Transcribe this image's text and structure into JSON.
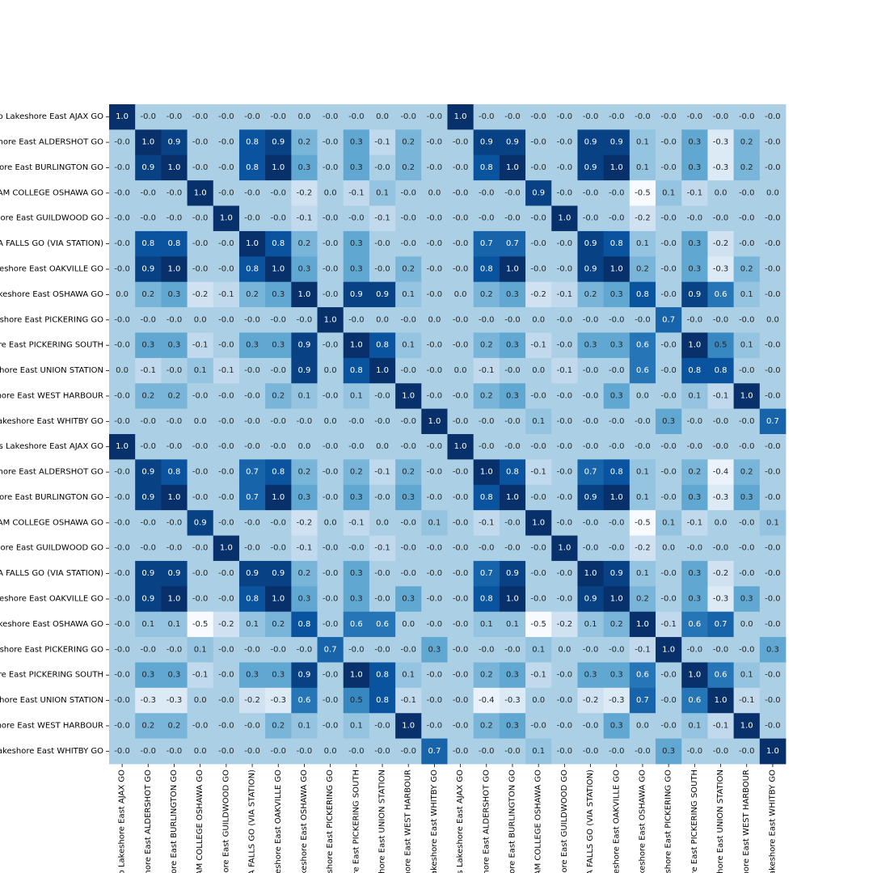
{
  "chart_data": {
    "type": "heatmap",
    "title": "",
    "xlabel": "",
    "ylabel": "",
    "colormap": "Blues",
    "vmin": -0.5,
    "vmax": 1.0,
    "colorbar": false,
    "grid": false,
    "x_labels": [
      "o Lakeshore East AJAX GO",
      "hore East ALDERSHOT GO",
      "ore East BURLINGTON GO",
      "AM COLLEGE OSHAWA GO",
      "ore East GUILDWOOD GO",
      "A FALLS GO (VIA STATION)",
      "eshore East OAKVILLE GO",
      "keshore East OSHAWA GO",
      "shore East PICKERING GO",
      "re East PICKERING SOUTH",
      "hore East UNION STATION",
      "hore East WEST HARBOUR",
      "akeshore East WHITBY GO",
      "s Lakeshore East AJAX GO",
      "hore East ALDERSHOT GO",
      "ore East BURLINGTON GO",
      "AM COLLEGE OSHAWA GO",
      "ore East GUILDWOOD GO",
      "A FALLS GO (VIA STATION)",
      "eshore East OAKVILLE GO",
      "keshore East OSHAWA GO",
      "shore East PICKERING GO",
      "re East PICKERING SOUTH",
      "hore East UNION STATION",
      "hore East WEST HARBOUR",
      "akeshore East WHITBY GO"
    ],
    "y_labels": [
      "o Lakeshore East AJAX GO",
      "hore East ALDERSHOT GO",
      "ore East BURLINGTON GO",
      "AM COLLEGE OSHAWA GO",
      "ore East GUILDWOOD GO",
      "A FALLS GO (VIA STATION)",
      "eshore East OAKVILLE GO",
      "keshore East OSHAWA GO",
      "shore East PICKERING GO",
      "re East PICKERING SOUTH",
      "hore East UNION STATION",
      "hore East WEST HARBOUR",
      "akeshore East WHITBY GO",
      "s Lakeshore East AJAX GO",
      "hore East ALDERSHOT GO",
      "ore East BURLINGTON GO",
      "AM COLLEGE OSHAWA GO",
      "ore East GUILDWOOD GO",
      "A FALLS GO (VIA STATION)",
      "eshore East OAKVILLE GO",
      "keshore East OSHAWA GO",
      "shore East PICKERING GO",
      "re East PICKERING SOUTH",
      "hore East UNION STATION",
      "hore East WEST HARBOUR",
      "akeshore East WHITBY GO"
    ],
    "values": [
      [
        "1.0",
        "-0.0",
        "-0.0",
        "-0.0",
        "-0.0",
        "-0.0",
        "-0.0",
        "0.0",
        "-0.0",
        "-0.0",
        "0.0",
        "-0.0",
        "-0.0",
        "1.0",
        "-0.0",
        "-0.0",
        "-0.0",
        "-0.0",
        "-0.0",
        "-0.0",
        "-0.0",
        "-0.0",
        "-0.0",
        "-0.0",
        "-0.0",
        "-0.0"
      ],
      [
        "-0.0",
        "1.0",
        "0.9",
        "-0.0",
        "-0.0",
        "0.8",
        "0.9",
        "0.2",
        "-0.0",
        "0.3",
        "-0.1",
        "0.2",
        "-0.0",
        "-0.0",
        "0.9",
        "0.9",
        "-0.0",
        "-0.0",
        "0.9",
        "0.9",
        "0.1",
        "-0.0",
        "0.3",
        "-0.3",
        "0.2",
        "-0.0"
      ],
      [
        "-0.0",
        "0.9",
        "1.0",
        "-0.0",
        "-0.0",
        "0.8",
        "1.0",
        "0.3",
        "-0.0",
        "0.3",
        "-0.0",
        "0.2",
        "-0.0",
        "-0.0",
        "0.8",
        "1.0",
        "-0.0",
        "-0.0",
        "0.9",
        "1.0",
        "0.1",
        "-0.0",
        "0.3",
        "-0.3",
        "0.2",
        "-0.0"
      ],
      [
        "-0.0",
        "-0.0",
        "-0.0",
        "1.0",
        "-0.0",
        "-0.0",
        "-0.0",
        "-0.2",
        "0.0",
        "-0.1",
        "0.1",
        "-0.0",
        "0.0",
        "-0.0",
        "-0.0",
        "-0.0",
        "0.9",
        "-0.0",
        "-0.0",
        "-0.0",
        "-0.5",
        "0.1",
        "-0.1",
        "0.0",
        "-0.0",
        "0.0"
      ],
      [
        "-0.0",
        "-0.0",
        "-0.0",
        "-0.0",
        "1.0",
        "-0.0",
        "-0.0",
        "-0.1",
        "-0.0",
        "-0.0",
        "-0.1",
        "-0.0",
        "-0.0",
        "-0.0",
        "-0.0",
        "-0.0",
        "-0.0",
        "1.0",
        "-0.0",
        "-0.0",
        "-0.2",
        "-0.0",
        "-0.0",
        "-0.0",
        "-0.0",
        "-0.0"
      ],
      [
        "-0.0",
        "0.8",
        "0.8",
        "-0.0",
        "-0.0",
        "1.0",
        "0.8",
        "0.2",
        "-0.0",
        "0.3",
        "-0.0",
        "-0.0",
        "-0.0",
        "-0.0",
        "0.7",
        "0.7",
        "-0.0",
        "-0.0",
        "0.9",
        "0.8",
        "0.1",
        "-0.0",
        "0.3",
        "-0.2",
        "-0.0",
        "-0.0"
      ],
      [
        "-0.0",
        "0.9",
        "1.0",
        "-0.0",
        "-0.0",
        "0.8",
        "1.0",
        "0.3",
        "-0.0",
        "0.3",
        "-0.0",
        "0.2",
        "-0.0",
        "-0.0",
        "0.8",
        "1.0",
        "-0.0",
        "-0.0",
        "0.9",
        "1.0",
        "0.2",
        "-0.0",
        "0.3",
        "-0.3",
        "0.2",
        "-0.0"
      ],
      [
        "0.0",
        "0.2",
        "0.3",
        "-0.2",
        "-0.1",
        "0.2",
        "0.3",
        "1.0",
        "-0.0",
        "0.9",
        "0.9",
        "0.1",
        "-0.0",
        "0.0",
        "0.2",
        "0.3",
        "-0.2",
        "-0.1",
        "0.2",
        "0.3",
        "0.8",
        "-0.0",
        "0.9",
        "0.6",
        "0.1",
        "-0.0"
      ],
      [
        "-0.0",
        "-0.0",
        "-0.0",
        "0.0",
        "-0.0",
        "-0.0",
        "-0.0",
        "-0.0",
        "1.0",
        "-0.0",
        "0.0",
        "-0.0",
        "0.0",
        "-0.0",
        "-0.0",
        "-0.0",
        "0.0",
        "-0.0",
        "-0.0",
        "-0.0",
        "-0.0",
        "0.7",
        "-0.0",
        "-0.0",
        "-0.0",
        "0.0"
      ],
      [
        "-0.0",
        "0.3",
        "0.3",
        "-0.1",
        "-0.0",
        "0.3",
        "0.3",
        "0.9",
        "-0.0",
        "1.0",
        "0.8",
        "0.1",
        "-0.0",
        "-0.0",
        "0.2",
        "0.3",
        "-0.1",
        "-0.0",
        "0.3",
        "0.3",
        "0.6",
        "-0.0",
        "1.0",
        "0.5",
        "0.1",
        "-0.0"
      ],
      [
        "0.0",
        "-0.1",
        "-0.0",
        "0.1",
        "-0.1",
        "-0.0",
        "-0.0",
        "0.9",
        "0.0",
        "0.8",
        "1.0",
        "-0.0",
        "-0.0",
        "0.0",
        "-0.1",
        "-0.0",
        "0.0",
        "-0.1",
        "-0.0",
        "-0.0",
        "0.6",
        "-0.0",
        "0.8",
        "0.8",
        "-0.0",
        "-0.0"
      ],
      [
        "-0.0",
        "0.2",
        "0.2",
        "-0.0",
        "-0.0",
        "-0.0",
        "0.2",
        "0.1",
        "-0.0",
        "0.1",
        "-0.0",
        "1.0",
        "-0.0",
        "-0.0",
        "0.2",
        "0.3",
        "-0.0",
        "-0.0",
        "-0.0",
        "0.3",
        "0.0",
        "-0.0",
        "0.1",
        "-0.1",
        "1.0",
        "-0.0"
      ],
      [
        "-0.0",
        "-0.0",
        "-0.0",
        "0.0",
        "-0.0",
        "-0.0",
        "-0.0",
        "-0.0",
        "0.0",
        "-0.0",
        "-0.0",
        "-0.0",
        "1.0",
        "-0.0",
        "-0.0",
        "-0.0",
        "0.1",
        "-0.0",
        "-0.0",
        "-0.0",
        "-0.0",
        "0.3",
        "-0.0",
        "-0.0",
        "-0.0",
        "0.7"
      ],
      [
        "1.0",
        "-0.0",
        "-0.0",
        "-0.0",
        "-0.0",
        "-0.0",
        "-0.0",
        "0.0",
        "-0.0",
        "-0.0",
        "0.0",
        "-0.0",
        "-0.0",
        "1.0",
        "-0.0",
        "-0.0",
        "-0.0",
        "-0.0",
        "-0.0",
        "-0.0",
        "-0.0",
        "-0.0",
        "-0.0",
        "-0.0",
        "-0.0",
        "-0.0"
      ],
      [
        "-0.0",
        "0.9",
        "0.8",
        "-0.0",
        "-0.0",
        "0.7",
        "0.8",
        "0.2",
        "-0.0",
        "0.2",
        "-0.1",
        "0.2",
        "-0.0",
        "-0.0",
        "1.0",
        "0.8",
        "-0.1",
        "-0.0",
        "0.7",
        "0.8",
        "0.1",
        "-0.0",
        "0.2",
        "-0.4",
        "0.2",
        "-0.0"
      ],
      [
        "-0.0",
        "0.9",
        "1.0",
        "-0.0",
        "-0.0",
        "0.7",
        "1.0",
        "0.3",
        "-0.0",
        "0.3",
        "-0.0",
        "0.3",
        "-0.0",
        "-0.0",
        "0.8",
        "1.0",
        "-0.0",
        "-0.0",
        "0.9",
        "1.0",
        "0.1",
        "-0.0",
        "0.3",
        "-0.3",
        "0.3",
        "-0.0"
      ],
      [
        "-0.0",
        "-0.0",
        "-0.0",
        "0.9",
        "-0.0",
        "-0.0",
        "-0.0",
        "-0.2",
        "0.0",
        "-0.1",
        "0.0",
        "-0.0",
        "0.1",
        "-0.0",
        "-0.1",
        "-0.0",
        "1.0",
        "-0.0",
        "-0.0",
        "-0.0",
        "-0.5",
        "0.1",
        "-0.1",
        "0.0",
        "-0.0",
        "0.1"
      ],
      [
        "-0.0",
        "-0.0",
        "-0.0",
        "-0.0",
        "1.0",
        "-0.0",
        "-0.0",
        "-0.1",
        "-0.0",
        "-0.0",
        "-0.1",
        "-0.0",
        "-0.0",
        "-0.0",
        "-0.0",
        "-0.0",
        "-0.0",
        "1.0",
        "-0.0",
        "-0.0",
        "-0.2",
        "0.0",
        "-0.0",
        "-0.0",
        "-0.0",
        "-0.0"
      ],
      [
        "-0.0",
        "0.9",
        "0.9",
        "-0.0",
        "-0.0",
        "0.9",
        "0.9",
        "0.2",
        "-0.0",
        "0.3",
        "-0.0",
        "-0.0",
        "-0.0",
        "-0.0",
        "0.7",
        "0.9",
        "-0.0",
        "-0.0",
        "1.0",
        "0.9",
        "0.1",
        "-0.0",
        "0.3",
        "-0.2",
        "-0.0",
        "-0.0"
      ],
      [
        "-0.0",
        "0.9",
        "1.0",
        "-0.0",
        "-0.0",
        "0.8",
        "1.0",
        "0.3",
        "-0.0",
        "0.3",
        "-0.0",
        "0.3",
        "-0.0",
        "-0.0",
        "0.8",
        "1.0",
        "-0.0",
        "-0.0",
        "0.9",
        "1.0",
        "0.2",
        "-0.0",
        "0.3",
        "-0.3",
        "0.3",
        "-0.0"
      ],
      [
        "-0.0",
        "0.1",
        "0.1",
        "-0.5",
        "-0.2",
        "0.1",
        "0.2",
        "0.8",
        "-0.0",
        "0.6",
        "0.6",
        "0.0",
        "-0.0",
        "-0.0",
        "0.1",
        "0.1",
        "-0.5",
        "-0.2",
        "0.1",
        "0.2",
        "1.0",
        "-0.1",
        "0.6",
        "0.7",
        "0.0",
        "-0.0"
      ],
      [
        "-0.0",
        "-0.0",
        "-0.0",
        "0.1",
        "-0.0",
        "-0.0",
        "-0.0",
        "-0.0",
        "0.7",
        "-0.0",
        "-0.0",
        "-0.0",
        "0.3",
        "-0.0",
        "-0.0",
        "-0.0",
        "0.1",
        "0.0",
        "-0.0",
        "-0.0",
        "-0.1",
        "1.0",
        "-0.0",
        "-0.0",
        "-0.0",
        "0.3"
      ],
      [
        "-0.0",
        "0.3",
        "0.3",
        "-0.1",
        "-0.0",
        "0.3",
        "0.3",
        "0.9",
        "-0.0",
        "1.0",
        "0.8",
        "0.1",
        "-0.0",
        "-0.0",
        "0.2",
        "0.3",
        "-0.1",
        "-0.0",
        "0.3",
        "0.3",
        "0.6",
        "-0.0",
        "1.0",
        "0.6",
        "0.1",
        "-0.0"
      ],
      [
        "-0.0",
        "-0.3",
        "-0.3",
        "0.0",
        "-0.0",
        "-0.2",
        "-0.3",
        "0.6",
        "-0.0",
        "0.5",
        "0.8",
        "-0.1",
        "-0.0",
        "-0.0",
        "-0.4",
        "-0.3",
        "0.0",
        "-0.0",
        "-0.2",
        "-0.3",
        "0.7",
        "-0.0",
        "0.6",
        "1.0",
        "-0.1",
        "-0.0"
      ],
      [
        "-0.0",
        "0.2",
        "0.2",
        "-0.0",
        "-0.0",
        "-0.0",
        "0.2",
        "0.1",
        "-0.0",
        "0.1",
        "-0.0",
        "1.0",
        "-0.0",
        "-0.0",
        "0.2",
        "0.3",
        "-0.0",
        "-0.0",
        "-0.0",
        "0.3",
        "0.0",
        "-0.0",
        "0.1",
        "-0.1",
        "1.0",
        "-0.0"
      ],
      [
        "-0.0",
        "-0.0",
        "-0.0",
        "0.0",
        "-0.0",
        "-0.0",
        "-0.0",
        "-0.0",
        "0.0",
        "-0.0",
        "-0.0",
        "-0.0",
        "0.7",
        "-0.0",
        "-0.0",
        "-0.0",
        "0.1",
        "-0.0",
        "-0.0",
        "-0.0",
        "-0.0",
        "0.3",
        "-0.0",
        "-0.0",
        "-0.0",
        "1.0"
      ]
    ]
  }
}
